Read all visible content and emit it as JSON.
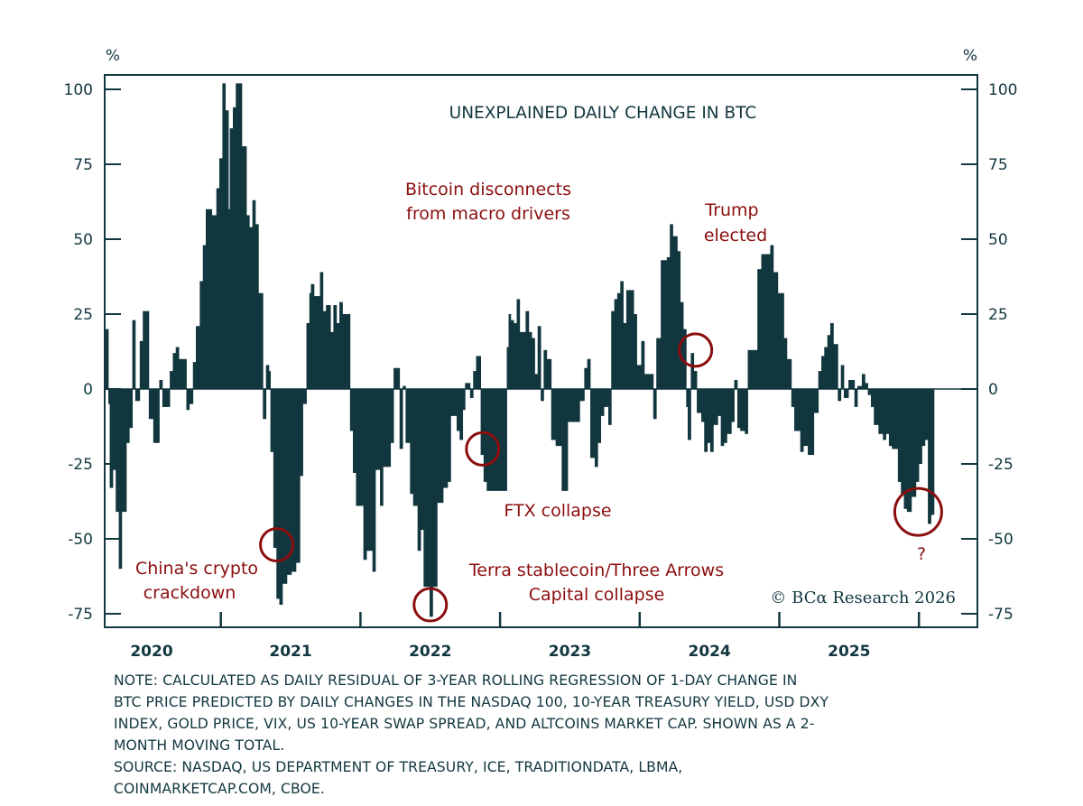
{
  "chart_data": {
    "type": "bar",
    "title": "UNEXPLAINED DAILY CHANGE IN BTC",
    "ylabel_left": "%",
    "ylabel_right": "%",
    "ylim": [
      -80,
      100
    ],
    "yticks": [
      100,
      75,
      50,
      25,
      0,
      -25,
      -50,
      -75
    ],
    "xlim": [
      2020.17,
      2026.42
    ],
    "xtick_labels": [
      "2020",
      "2021",
      "2022",
      "2023",
      "2024",
      "2025"
    ],
    "grid": false,
    "colors": {
      "bars": "#11363e",
      "annotation": "#8b0e0e",
      "axis": "#12373f"
    },
    "series": [
      {
        "x": [
          2020.172,
          2020.194,
          2020.204,
          2020.226,
          2020.247,
          2020.269,
          2020.29,
          2020.323,
          2020.344,
          2020.366,
          2020.387,
          2020.419,
          2020.441,
          2020.484,
          2020.516,
          2020.559,
          2020.581,
          2020.634,
          2020.656,
          2020.677,
          2020.699,
          2020.753,
          2020.774,
          2020.8,
          2020.821,
          2020.849,
          2020.871,
          2020.892,
          2020.935,
          2020.968,
          2020.989,
          2021.011,
          2021.032,
          2021.054,
          2021.064,
          2021.086,
          2021.107,
          2021.15,
          2021.183,
          2021.204,
          2021.226,
          2021.247,
          2021.269,
          2021.301,
          2021.323,
          2021.344,
          2021.355,
          2021.376,
          2021.398,
          2021.419,
          2021.441,
          2021.473,
          2021.505,
          2021.538,
          2021.566,
          2021.587,
          2021.613,
          2021.634,
          2021.645,
          2021.667,
          2021.71,
          2021.731,
          2021.753,
          2021.785,
          2021.806,
          2021.828,
          2021.849,
          2021.871,
          2021.925,
          2021.946,
          2021.968,
          2022.021,
          2022.043,
          2022.086,
          2022.107,
          2022.14,
          2022.161,
          2022.215,
          2022.237,
          2022.28,
          2022.302,
          2022.323,
          2022.355,
          2022.377,
          2022.409,
          2022.431,
          2022.452,
          2022.495,
          2022.517,
          2022.549,
          2022.592,
          2022.624,
          2022.646,
          2022.689,
          2022.71,
          2022.732,
          2022.749,
          2022.785,
          2022.807,
          2022.828,
          2022.861,
          2022.882,
          2022.904,
          2023.048,
          2023.061,
          2023.076,
          2023.097,
          2023.119,
          2023.14,
          2023.183,
          2023.205,
          2023.226,
          2023.248,
          2023.269,
          2023.291,
          2023.312,
          2023.334,
          2023.366,
          2023.398,
          2023.441,
          2023.484,
          2023.57,
          2023.603,
          2023.624,
          2023.646,
          2023.678,
          2023.699,
          2023.721,
          2023.743,
          2023.775,
          2023.796,
          2023.818,
          2023.839,
          2023.861,
          2023.882,
          2023.904,
          2023.957,
          2023.979,
          2024.011,
          2024.033,
          2024.097,
          2024.119,
          2024.151,
          2024.194,
          2024.216,
          2024.237,
          2024.269,
          2024.29,
          2024.312,
          2024.333,
          2024.344,
          2024.366,
          2024.387,
          2024.409,
          2024.441,
          2024.462,
          2024.484,
          2024.505,
          2024.527,
          2024.559,
          2024.581,
          2024.602,
          2024.624,
          2024.656,
          2024.677,
          2024.699,
          2024.72,
          2024.753,
          2024.774,
          2024.843,
          2024.871,
          2024.935,
          2024.957,
          2024.989,
          2025.032,
          2025.054,
          2025.086,
          2025.107,
          2025.15,
          2025.172,
          2025.204,
          2025.247,
          2025.279,
          2025.301,
          2025.322,
          2025.344,
          2025.365,
          2025.387,
          2025.419,
          2025.441,
          2025.462,
          2025.495,
          2025.538,
          2025.559,
          2025.591,
          2025.613,
          2025.634,
          2025.656,
          2025.677,
          2025.71,
          2025.742,
          2025.763,
          2025.785,
          2025.806,
          2025.849,
          2025.871,
          2025.892,
          2025.914,
          2025.946,
          2025.978,
          2025.999,
          2026.021,
          2026.043,
          2026.064,
          2026.086
        ],
        "y": [
          20,
          -5,
          -33,
          -27,
          -41,
          -60,
          -41,
          -18,
          -13,
          23,
          -4,
          16,
          26,
          -10,
          -18,
          3,
          -6,
          6,
          12,
          14,
          10,
          -7,
          -5,
          9,
          21,
          36,
          48,
          60,
          58,
          67,
          77,
          102,
          93,
          60,
          87,
          94,
          102,
          81,
          58,
          54,
          63,
          55,
          32,
          -10,
          8,
          6,
          -21,
          -53,
          -70,
          -72,
          -65,
          -62,
          -61,
          -58,
          -29,
          -5,
          22,
          32,
          35,
          31,
          39,
          26,
          28,
          19,
          28,
          22,
          29,
          25,
          -14,
          -28,
          -39,
          -57,
          -54,
          -61,
          -27,
          -39,
          -26,
          -18,
          7,
          -20,
          1,
          -18,
          -35,
          -39,
          -54,
          -47,
          -66,
          -76,
          -66,
          -38,
          -33,
          -31,
          -9,
          -14,
          -17,
          -7,
          2,
          -3,
          6,
          11,
          -22,
          -31,
          -34,
          14,
          25,
          23,
          22,
          30,
          19,
          26,
          19,
          17,
          5,
          21,
          -4,
          13,
          10,
          -17,
          -19,
          -34,
          -11,
          -4,
          7,
          10,
          -23,
          -26,
          -18,
          -9,
          -6,
          -12,
          26,
          30,
          32,
          36,
          22,
          33,
          25,
          8,
          16,
          5,
          -10,
          17,
          43,
          44,
          55,
          51,
          46,
          29,
          20,
          -6,
          -17,
          12,
          6,
          -8,
          -11,
          -21,
          -18,
          -21,
          -12,
          -9,
          -19,
          -18,
          -15,
          -11,
          3,
          -13,
          -14,
          -15,
          13,
          40,
          45,
          48,
          39,
          32,
          17,
          10,
          -6,
          -14,
          -21,
          -19,
          -22,
          -8,
          6,
          11,
          14,
          18,
          22,
          15,
          -4,
          8,
          -3,
          3,
          -6,
          1,
          5,
          2,
          -2,
          -6,
          -12,
          -15,
          -17,
          -15,
          -19,
          -20,
          -31,
          -35,
          -40,
          -41,
          -36,
          -31,
          -25,
          -19,
          -17,
          -45,
          -42
        ]
      }
    ],
    "annotations": [
      {
        "lines": [
          "Bitcoin disconnects",
          "from macro drivers"
        ]
      },
      {
        "lines": [
          "Trump",
          "elected"
        ],
        "circle_at": {
          "x": 2024.4,
          "y": 13
        }
      },
      {
        "lines": [
          "China's crypto",
          "crackdown"
        ],
        "circle_at": {
          "x": 2021.4,
          "y": -52
        }
      },
      {
        "lines": [
          "FTX collapse"
        ],
        "circle_at": {
          "x": 2022.875,
          "y": -20
        }
      },
      {
        "lines": [
          "Terra stablecoin/Three Arrows",
          "Capital collapse"
        ],
        "circle_at": {
          "x": 2022.5,
          "y": -72
        }
      },
      {
        "lines": [
          "?"
        ],
        "circle_at": {
          "x": 2025.995,
          "y": -41
        }
      }
    ],
    "copyright": "© BCα Research 2026"
  },
  "notes": [
    "NOTE: CALCULATED AS DAILY RESIDUAL OF 3-YEAR ROLLING REGRESSION OF 1-DAY CHANGE IN",
    "BTC PRICE PREDICTED BY DAILY CHANGES IN THE NASDAQ 100, 10-YEAR TREASURY YIELD, USD DXY",
    "INDEX, GOLD PRICE, VIX, US 10-YEAR SWAP SPREAD, AND ALTCOINS MARKET CAP. SHOWN AS A 2-",
    "MONTH MOVING TOTAL.",
    "SOURCE: NASDAQ, US DEPARTMENT OF TREASURY, ICE, TRADITIONDATA, LBMA,",
    "COINMARKETCAP.COM, CBOE."
  ]
}
